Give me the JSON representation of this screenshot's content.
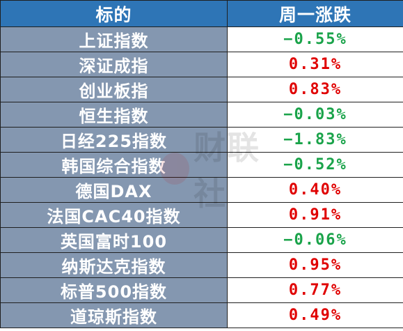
{
  "header": {
    "col_name": "标的",
    "col_change": "周一涨跌"
  },
  "colors": {
    "up": "#e00000",
    "down": "#1aa34a",
    "header_bg": "#2e75b6",
    "name_bg": "#8497b0"
  },
  "rows": [
    {
      "name": "上证指数",
      "change": "−0.55%",
      "dir": "down"
    },
    {
      "name": "深证成指",
      "change": "0.31%",
      "dir": "up"
    },
    {
      "name": "创业板指",
      "change": "0.83%",
      "dir": "up"
    },
    {
      "name": "恒生指数",
      "change": "−0.03%",
      "dir": "down"
    },
    {
      "name": "日经225指数",
      "change": "−1.83%",
      "dir": "down"
    },
    {
      "name": "韩国综合指数",
      "change": "−0.52%",
      "dir": "down"
    },
    {
      "name": "德国DAX",
      "change": "0.40%",
      "dir": "up"
    },
    {
      "name": "法国CAC40指数",
      "change": "0.91%",
      "dir": "up"
    },
    {
      "name": "英国富时100",
      "change": "−0.06%",
      "dir": "down"
    },
    {
      "name": "纳斯达克指数",
      "change": "0.95%",
      "dir": "up"
    },
    {
      "name": "标普500指数",
      "change": "0.77%",
      "dir": "up"
    },
    {
      "name": "道琼斯指数",
      "change": "0.49%",
      "dir": "up"
    }
  ],
  "watermark": {
    "text": "财联社"
  }
}
